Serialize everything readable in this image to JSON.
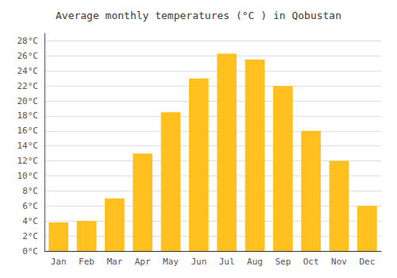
{
  "chart_data": {
    "type": "bar",
    "title": "Average monthly temperatures (°C ) in Qobustan",
    "categories": [
      "Jan",
      "Feb",
      "Mar",
      "Apr",
      "May",
      "Jun",
      "Jul",
      "Aug",
      "Sep",
      "Oct",
      "Nov",
      "Dec"
    ],
    "values": [
      3.8,
      4.0,
      7.0,
      13.0,
      18.5,
      23.0,
      26.3,
      25.5,
      22.0,
      16.0,
      12.0,
      6.0
    ],
    "color": "#FFC020",
    "ylim": [
      0,
      29
    ],
    "yticks": [
      {
        "value": 0,
        "label": "0°C"
      },
      {
        "value": 2,
        "label": "2°C"
      },
      {
        "value": 4,
        "label": "4°C"
      },
      {
        "value": 6,
        "label": "6°C"
      },
      {
        "value": 8,
        "label": "8°C"
      },
      {
        "value": 10,
        "label": "10°C"
      },
      {
        "value": 12,
        "label": "12°C"
      },
      {
        "value": 14,
        "label": "14°C"
      },
      {
        "value": 16,
        "label": "16°C"
      },
      {
        "value": 18,
        "label": "18°C"
      },
      {
        "value": 20,
        "label": "20°C"
      },
      {
        "value": 22,
        "label": "22°C"
      },
      {
        "value": 24,
        "label": "24°C"
      },
      {
        "value": 26,
        "label": "26°C"
      },
      {
        "value": 28,
        "label": "28°C"
      }
    ],
    "grid": true
  }
}
